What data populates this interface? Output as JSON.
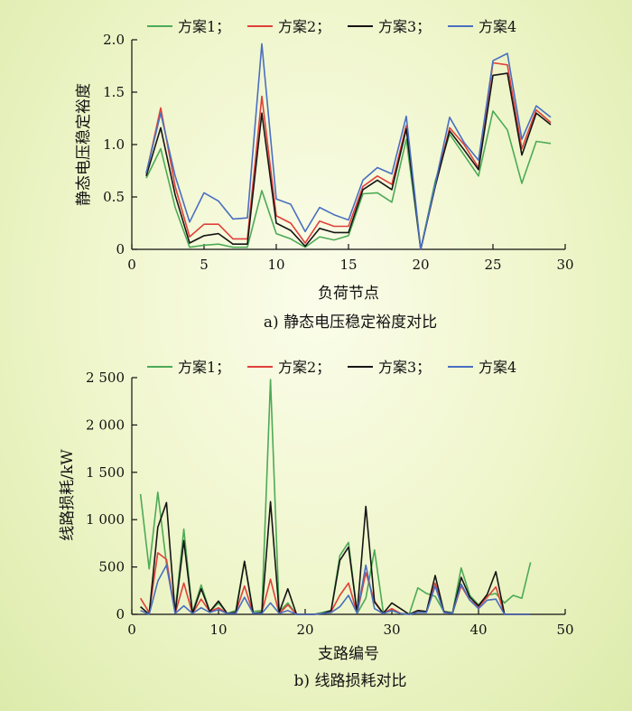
{
  "colors": {
    "scheme1": "#4daa57",
    "scheme2": "#e0403a",
    "scheme3": "#151515",
    "scheme4": "#4a6fc0"
  },
  "chart_data": [
    {
      "type": "line",
      "caption": "a) 静态电压稳定裕度对比",
      "xlabel": "负荷节点",
      "ylabel": "静态电压稳定裕度",
      "xlim": [
        0,
        30
      ],
      "ylim": [
        0,
        2
      ],
      "xticks": [
        0,
        5,
        10,
        15,
        20,
        25,
        30
      ],
      "yticks": [
        0,
        0.5,
        1.0,
        1.5,
        2.0
      ],
      "ytick_labels": [
        "0",
        "0.5",
        "1.0",
        "1.5",
        "2.0"
      ],
      "legend_position": "top",
      "grid": false,
      "x": [
        1,
        2,
        3,
        4,
        5,
        6,
        7,
        8,
        9,
        10,
        11,
        12,
        13,
        14,
        15,
        16,
        17,
        18,
        19,
        20,
        21,
        22,
        23,
        24,
        25,
        26,
        27,
        28,
        29
      ],
      "series": [
        {
          "name": "方案1；",
          "color_key": "scheme1",
          "values": [
            0.68,
            0.96,
            0.4,
            0.02,
            0.04,
            0.05,
            0.02,
            0.02,
            0.56,
            0.15,
            0.1,
            0.02,
            0.12,
            0.09,
            0.13,
            0.53,
            0.54,
            0.45,
            1.05,
            0.0,
            0.65,
            1.1,
            0.9,
            0.7,
            1.32,
            1.14,
            0.63,
            1.03,
            1.01
          ]
        },
        {
          "name": "方案2；",
          "color_key": "scheme2",
          "values": [
            0.72,
            1.35,
            0.6,
            0.12,
            0.24,
            0.24,
            0.1,
            0.1,
            1.46,
            0.32,
            0.25,
            0.06,
            0.27,
            0.22,
            0.22,
            0.6,
            0.7,
            0.62,
            1.18,
            0.0,
            0.6,
            1.16,
            1.0,
            0.78,
            1.78,
            1.76,
            0.96,
            1.33,
            1.21
          ]
        },
        {
          "name": "方案3；",
          "color_key": "scheme3",
          "values": [
            0.7,
            1.16,
            0.52,
            0.06,
            0.13,
            0.15,
            0.05,
            0.05,
            1.3,
            0.25,
            0.18,
            0.03,
            0.2,
            0.16,
            0.16,
            0.57,
            0.66,
            0.57,
            1.15,
            0.0,
            0.6,
            1.13,
            0.95,
            0.76,
            1.66,
            1.68,
            0.9,
            1.3,
            1.19
          ]
        },
        {
          "name": "方案4",
          "color_key": "scheme4",
          "values": [
            0.73,
            1.3,
            0.7,
            0.26,
            0.54,
            0.46,
            0.29,
            0.3,
            1.96,
            0.48,
            0.43,
            0.17,
            0.4,
            0.33,
            0.28,
            0.66,
            0.78,
            0.72,
            1.27,
            0.0,
            0.62,
            1.26,
            1.02,
            0.85,
            1.8,
            1.87,
            1.05,
            1.37,
            1.26
          ]
        }
      ]
    },
    {
      "type": "line",
      "caption": "b) 线路损耗对比",
      "xlabel": "支路编号",
      "ylabel": "线路损耗/kW",
      "xlim": [
        0,
        50
      ],
      "ylim": [
        0,
        2500
      ],
      "xticks": [
        0,
        10,
        20,
        30,
        40,
        50
      ],
      "yticks": [
        0,
        500,
        1000,
        1500,
        2000,
        2500
      ],
      "ytick_labels": [
        "0",
        "500",
        "1 000",
        "1 500",
        "2 000",
        "2 500"
      ],
      "legend_position": "top",
      "grid": false,
      "x": [
        1,
        2,
        3,
        4,
        5,
        6,
        7,
        8,
        9,
        10,
        11,
        12,
        13,
        14,
        15,
        16,
        17,
        18,
        19,
        20,
        21,
        22,
        23,
        24,
        25,
        26,
        27,
        28,
        29,
        30,
        31,
        32,
        33,
        34,
        35,
        36,
        37,
        38,
        39,
        40,
        41,
        42,
        43,
        44,
        45,
        46
      ],
      "series": [
        {
          "name": "方案1；",
          "color_key": "scheme1",
          "values": [
            1270,
            480,
            1290,
            530,
            30,
            900,
            20,
            310,
            30,
            120,
            10,
            40,
            560,
            30,
            40,
            2480,
            30,
            120,
            0,
            0,
            0,
            20,
            40,
            620,
            760,
            10,
            170,
            680,
            30,
            40,
            10,
            0,
            280,
            220,
            190,
            30,
            20,
            490,
            200,
            100,
            200,
            220,
            120,
            200,
            170,
            550
          ]
        },
        {
          "name": "方案2；",
          "color_key": "scheme2",
          "values": [
            170,
            20,
            650,
            580,
            10,
            330,
            10,
            160,
            30,
            70,
            10,
            20,
            300,
            10,
            20,
            370,
            10,
            100,
            0,
            0,
            0,
            10,
            30,
            200,
            330,
            10,
            440,
            140,
            10,
            60,
            10,
            0,
            40,
            30,
            330,
            30,
            10,
            300,
            150,
            80,
            180,
            290,
            0,
            0,
            0,
            0
          ]
        },
        {
          "name": "方案3；",
          "color_key": "scheme3",
          "values": [
            80,
            0,
            920,
            1180,
            10,
            780,
            10,
            270,
            30,
            140,
            10,
            20,
            560,
            10,
            20,
            1190,
            20,
            270,
            0,
            0,
            0,
            10,
            40,
            570,
            710,
            10,
            1140,
            130,
            10,
            120,
            60,
            0,
            40,
            30,
            410,
            30,
            10,
            390,
            180,
            90,
            210,
            450,
            0,
            0,
            0,
            0
          ]
        },
        {
          "name": "方案4",
          "color_key": "scheme4",
          "values": [
            40,
            0,
            350,
            520,
            10,
            90,
            10,
            70,
            20,
            50,
            10,
            10,
            180,
            10,
            10,
            120,
            10,
            40,
            0,
            0,
            0,
            10,
            20,
            80,
            200,
            10,
            520,
            60,
            10,
            40,
            10,
            0,
            20,
            20,
            300,
            20,
            10,
            320,
            150,
            60,
            150,
            160,
            0,
            0,
            0,
            0
          ]
        }
      ]
    }
  ]
}
